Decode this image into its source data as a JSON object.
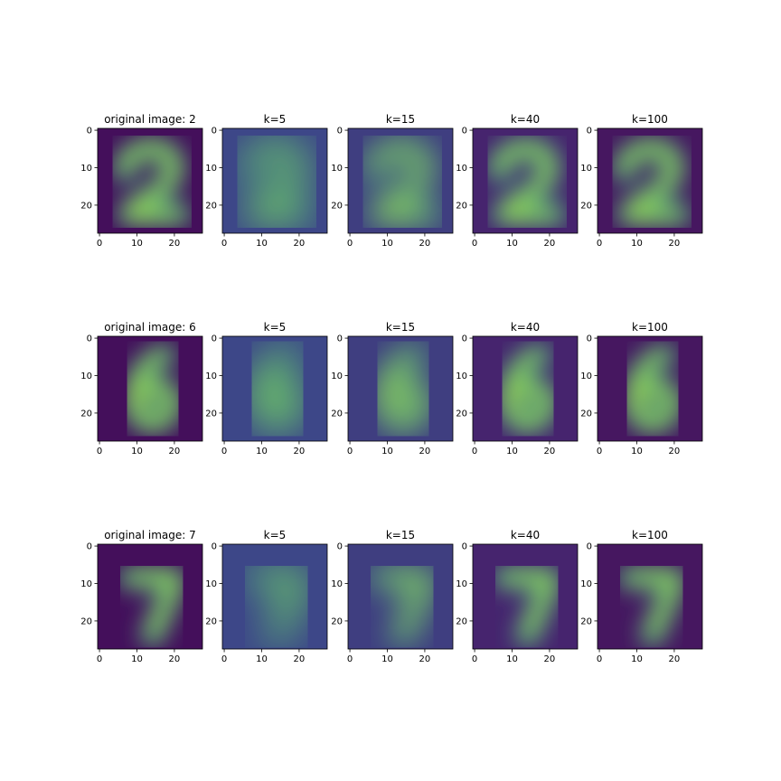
{
  "chart_data": {
    "type": "heatmap",
    "layout": "3x5 grid of image panels",
    "colormap": "viridis",
    "image_size": [
      28,
      28
    ],
    "x_ticks": [
      0,
      10,
      20
    ],
    "y_ticks": [
      0,
      10,
      20
    ],
    "xlim": [
      -0.5,
      27.5
    ],
    "ylim": [
      27.5,
      -0.5
    ],
    "grid": false,
    "column_labels": [
      "k=5",
      "k=15",
      "k=40",
      "k=100"
    ],
    "rows": [
      {
        "digit": "2",
        "title": "original image: 2",
        "panels": [
          "original image: 2",
          "k=5",
          "k=15",
          "k=40",
          "k=100"
        ]
      },
      {
        "digit": "6",
        "title": "original image: 6",
        "panels": [
          "original image: 6",
          "k=5",
          "k=15",
          "k=40",
          "k=100"
        ]
      },
      {
        "digit": "7",
        "title": "original image: 7",
        "panels": [
          "original image: 7",
          "k=5",
          "k=15",
          "k=40",
          "k=100"
        ]
      }
    ]
  }
}
